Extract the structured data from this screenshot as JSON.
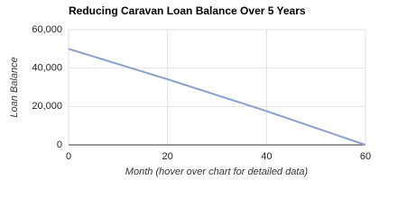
{
  "chart_data": {
    "type": "line",
    "title": "Reducing Caravan Loan Balance Over 5 Years",
    "x_label": "Month (hover over chart for detailed data)",
    "y_label": "Loan Balance",
    "x": [
      0,
      20,
      40,
      60
    ],
    "series": [
      {
        "color": "#8a9fc9",
        "values": [
          50000,
          34200,
          17600,
          0
        ]
      }
    ],
    "xlim": [
      0,
      60
    ],
    "xticks": [
      0,
      20,
      40,
      60
    ],
    "ylim": [
      0,
      60000
    ],
    "yticks": [
      0,
      {
        "value": 20000,
        "label": "20,000"
      },
      {
        "value": 40000,
        "label": "40,000"
      },
      {
        "value": 60000,
        "label": "60,000"
      }
    ],
    "grid": true
  }
}
